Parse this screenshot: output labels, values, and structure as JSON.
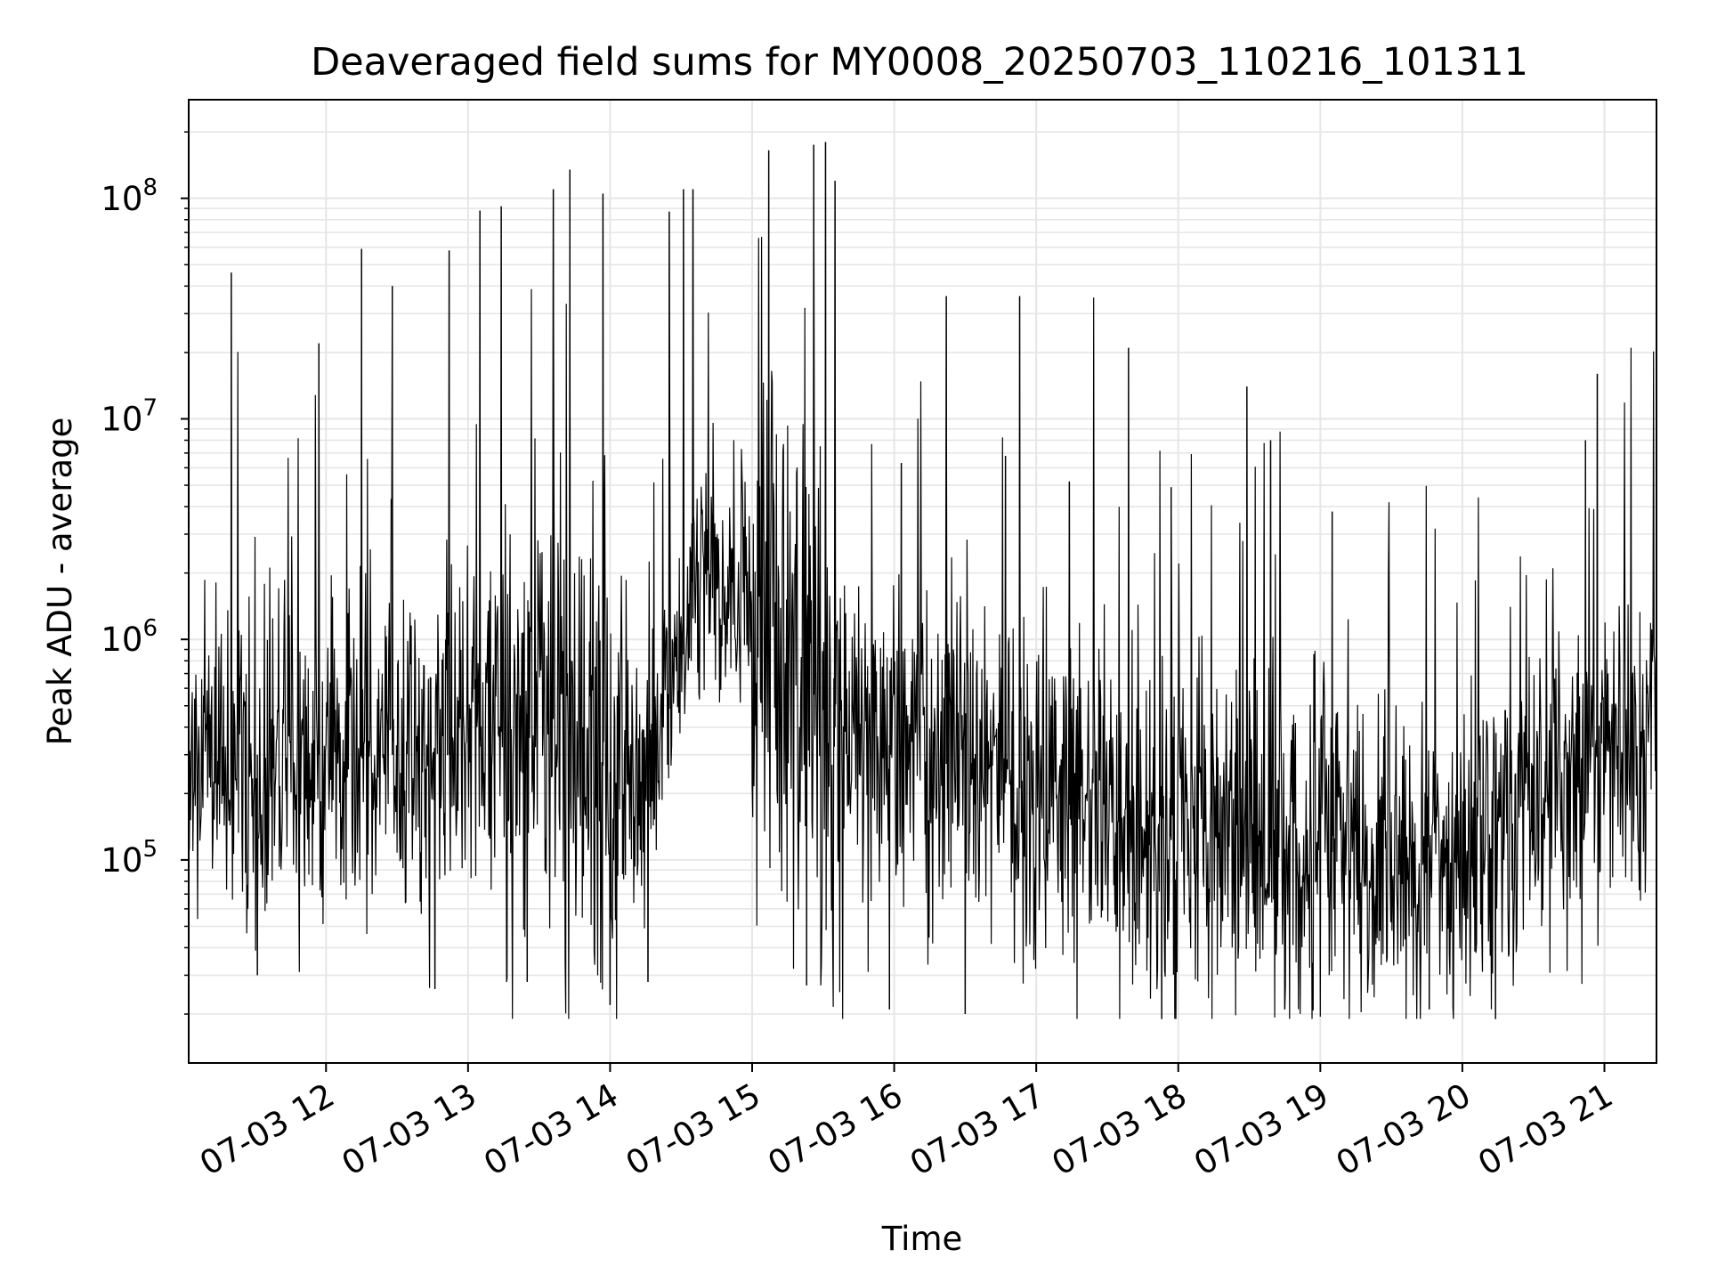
{
  "chart_data": {
    "type": "line",
    "title": "Deaveraged field sums for MY0008_20250703_110216_101311",
    "xlabel": "Time",
    "ylabel": "Peak ADU - average",
    "yscale": "log",
    "grid": true,
    "grid_color": "#e6e6e6",
    "line_color": "#000000",
    "xlim": [
      "2025-07-03 11:02",
      "2025-07-03 21:22"
    ],
    "ylim": [
      12000,
      280000000
    ],
    "x_ticks": [
      "07-03 12",
      "07-03 13",
      "07-03 14",
      "07-03 15",
      "07-03 16",
      "07-03 17",
      "07-03 18",
      "07-03 19",
      "07-03 20",
      "07-03 21"
    ],
    "y_ticks": [
      {
        "value": 100000,
        "base": "10",
        "exp": "5"
      },
      {
        "value": 1000000,
        "base": "10",
        "exp": "6"
      },
      {
        "value": 10000000,
        "base": "10",
        "exp": "7"
      },
      {
        "value": 100000000,
        "base": "10",
        "exp": "8"
      }
    ],
    "series_envelope": {
      "description": "approximate baseline level and spread of the plotted series per time span (hour, log10 baseline, log10 spread)",
      "points": [
        {
          "x": "2025-07-03 11:02",
          "baseline": 300000
        },
        {
          "x": "2025-07-03 12:00",
          "baseline": 300000
        },
        {
          "x": "2025-07-03 13:00",
          "baseline": 300000
        },
        {
          "x": "2025-07-03 13:30",
          "baseline": 500000
        },
        {
          "x": "2025-07-03 14:00",
          "baseline": 250000
        },
        {
          "x": "2025-07-03 14:18",
          "baseline": 250000
        },
        {
          "x": "2025-07-03 14:40",
          "baseline": 2000000
        },
        {
          "x": "2025-07-03 15:00",
          "baseline": 1500000
        },
        {
          "x": "2025-07-03 15:35",
          "baseline": 400000
        },
        {
          "x": "2025-07-03 17:00",
          "baseline": 200000
        },
        {
          "x": "2025-07-03 18:00",
          "baseline": 120000
        },
        {
          "x": "2025-07-03 20:00",
          "baseline": 100000
        },
        {
          "x": "2025-07-03 20:50",
          "baseline": 300000
        },
        {
          "x": "2025-07-03 21:22",
          "baseline": 400000
        }
      ]
    },
    "peaks": [
      {
        "x": "2025-07-03 11:20",
        "y": 46000000
      },
      {
        "x": "2025-07-03 11:57",
        "y": 22000000
      },
      {
        "x": "2025-07-03 12:15",
        "y": 59000000
      },
      {
        "x": "2025-07-03 12:28",
        "y": 40000000
      },
      {
        "x": "2025-07-03 12:52",
        "y": 58000000
      },
      {
        "x": "2025-07-03 13:05",
        "y": 88000000
      },
      {
        "x": "2025-07-03 13:14",
        "y": 92000000
      },
      {
        "x": "2025-07-03 13:36",
        "y": 110000000
      },
      {
        "x": "2025-07-03 13:43",
        "y": 135000000
      },
      {
        "x": "2025-07-03 13:57",
        "y": 105000000
      },
      {
        "x": "2025-07-03 14:25",
        "y": 87000000
      },
      {
        "x": "2025-07-03 14:31",
        "y": 110000000
      },
      {
        "x": "2025-07-03 14:35",
        "y": 110000000
      },
      {
        "x": "2025-07-03 15:07",
        "y": 165000000
      },
      {
        "x": "2025-07-03 15:26",
        "y": 175000000
      },
      {
        "x": "2025-07-03 15:31",
        "y": 180000000
      },
      {
        "x": "2025-07-03 15:35",
        "y": 120000000
      },
      {
        "x": "2025-07-03 16:03",
        "y": 6300000
      },
      {
        "x": "2025-07-03 16:22",
        "y": 36000000
      },
      {
        "x": "2025-07-03 16:47",
        "y": 6800000
      },
      {
        "x": "2025-07-03 16:53",
        "y": 36000000
      },
      {
        "x": "2025-07-03 17:14",
        "y": 5200000
      },
      {
        "x": "2025-07-03 17:39",
        "y": 21000000
      },
      {
        "x": "2025-07-03 17:57",
        "y": 4900000
      },
      {
        "x": "2025-07-03 18:29",
        "y": 14000000
      },
      {
        "x": "2025-07-03 18:39",
        "y": 8000000
      },
      {
        "x": "2025-07-03 19:05",
        "y": 3800000
      },
      {
        "x": "2025-07-03 20:52",
        "y": 8000000
      },
      {
        "x": "2025-07-03 20:57",
        "y": 16000000
      }
    ],
    "troughs": [
      {
        "x": "2025-07-03 11:31",
        "y": 30000
      },
      {
        "x": "2025-07-03 12:46",
        "y": 26000
      },
      {
        "x": "2025-07-03 13:25",
        "y": 28000
      },
      {
        "x": "2025-07-03 14:00",
        "y": 22000
      },
      {
        "x": "2025-07-03 14:16",
        "y": 28000
      },
      {
        "x": "2025-07-03 15:23",
        "y": 27000
      },
      {
        "x": "2025-07-03 15:58",
        "y": 21000
      },
      {
        "x": "2025-07-03 16:30",
        "y": 20000
      },
      {
        "x": "2025-07-03 17:53",
        "y": 19000
      },
      {
        "x": "2025-07-03 18:45",
        "y": 21000
      },
      {
        "x": "2025-07-03 19:46",
        "y": 21000
      },
      {
        "x": "2025-07-03 20:14",
        "y": 19000
      }
    ]
  }
}
